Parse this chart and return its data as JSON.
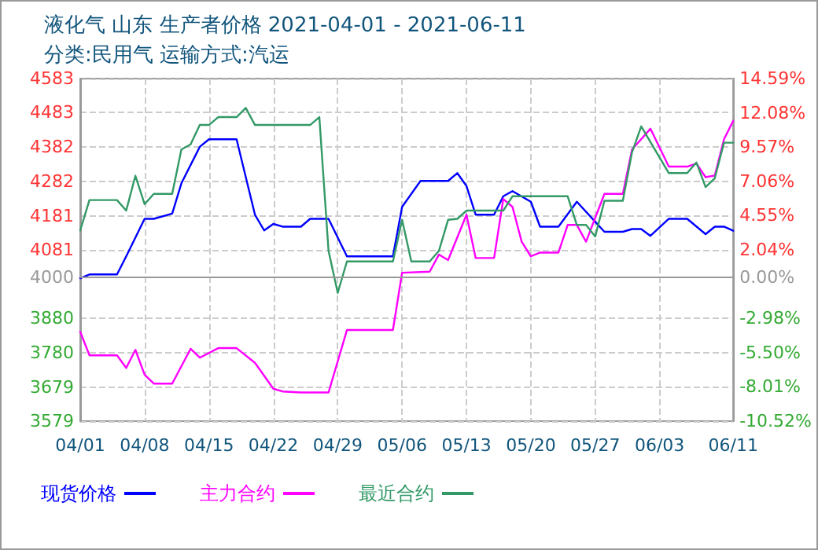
{
  "chart_data": {
    "type": "line",
    "title": "液化气 山东 生产者价格 2021-04-01 - 2021-06-11",
    "subtitle": "分类:民用气 运输方式:汽运",
    "xlim": [
      "2021-04-01",
      "2021-06-11"
    ],
    "xticks": [
      {
        "value": "2021-04-01",
        "label": "04/01"
      },
      {
        "value": "2021-04-08",
        "label": "04/08"
      },
      {
        "value": "2021-04-15",
        "label": "04/15"
      },
      {
        "value": "2021-04-22",
        "label": "04/22"
      },
      {
        "value": "2021-04-29",
        "label": "04/29"
      },
      {
        "value": "2021-05-06",
        "label": "05/06"
      },
      {
        "value": "2021-05-13",
        "label": "05/13"
      },
      {
        "value": "2021-05-20",
        "label": "05/20"
      },
      {
        "value": "2021-05-27",
        "label": "05/27"
      },
      {
        "value": "2021-06-03",
        "label": "06/03"
      },
      {
        "value": "2021-06-11",
        "label": "06/11"
      }
    ],
    "ylim": [
      3579,
      4583
    ],
    "yticks": [
      3579,
      3679,
      3780,
      3880,
      4000,
      4081,
      4181,
      4282,
      4382,
      4483,
      4583
    ],
    "y2lim": [
      -10.52,
      14.59
    ],
    "y2ticks": [
      {
        "value": -10.52,
        "label": "-10.52%"
      },
      {
        "value": -8.01,
        "label": "-8.01%"
      },
      {
        "value": -5.5,
        "label": "-5.50%"
      },
      {
        "value": -2.98,
        "label": "-2.98%"
      },
      {
        "value": 0,
        "label": "0.00%"
      },
      {
        "value": 2.04,
        "label": "2.04%"
      },
      {
        "value": 4.55,
        "label": "4.55%"
      },
      {
        "value": 7.06,
        "label": "7.06%"
      },
      {
        "value": 9.57,
        "label": "9.57%"
      },
      {
        "value": 12.08,
        "label": "12.08%"
      },
      {
        "value": 14.59,
        "label": "14.59%"
      }
    ],
    "ref_lines": [
      {
        "axis": "y",
        "value": 4000,
        "color": "#999999",
        "line_style": "solid"
      }
    ],
    "grid": true,
    "legend": "bottom left",
    "marker": "none",
    "line_style": "solid",
    "series": [
      {
        "name": "现货价格",
        "color": "#0000ff",
        "x": [
          "2021-04-01",
          "2021-04-02",
          "2021-04-05",
          "2021-04-06",
          "2021-04-08",
          "2021-04-09",
          "2021-04-11",
          "2021-04-12",
          "2021-04-14",
          "2021-04-15",
          "2021-04-18",
          "2021-04-20",
          "2021-04-21",
          "2021-04-22",
          "2021-04-23",
          "2021-04-25",
          "2021-04-26",
          "2021-04-28",
          "2021-04-30",
          "2021-05-05",
          "2021-05-06",
          "2021-05-08",
          "2021-05-11",
          "2021-05-12",
          "2021-05-13",
          "2021-05-14",
          "2021-05-16",
          "2021-05-17",
          "2021-05-18",
          "2021-05-20",
          "2021-05-21",
          "2021-05-23",
          "2021-05-25",
          "2021-05-28",
          "2021-05-30",
          "2021-05-31",
          "2021-06-01",
          "2021-06-02",
          "2021-06-04",
          "2021-06-06",
          "2021-06-08",
          "2021-06-09",
          "2021-06-10",
          "2021-06-11"
        ],
        "values": [
          3998,
          4009,
          4009,
          4062,
          4172,
          4172,
          4187,
          4276,
          4383,
          4405,
          4405,
          4184,
          4138,
          4157,
          4149,
          4149,
          4172,
          4172,
          4062,
          4062,
          4207,
          4283,
          4283,
          4306,
          4268,
          4184,
          4184,
          4238,
          4253,
          4222,
          4149,
          4149,
          4222,
          4134,
          4134,
          4142,
          4142,
          4122,
          4172,
          4172,
          4127,
          4149,
          4149,
          4137
        ]
      },
      {
        "name": "主力合约",
        "color": "#ff00ff",
        "x": [
          "2021-04-01",
          "2021-04-02",
          "2021-04-05",
          "2021-04-06",
          "2021-04-07",
          "2021-04-08",
          "2021-04-09",
          "2021-04-11",
          "2021-04-13",
          "2021-04-14",
          "2021-04-16",
          "2021-04-18",
          "2021-04-20",
          "2021-04-22",
          "2021-04-23",
          "2021-04-25",
          "2021-04-28",
          "2021-04-30",
          "2021-05-05",
          "2021-05-06",
          "2021-05-09",
          "2021-05-10",
          "2021-05-11",
          "2021-05-13",
          "2021-05-14",
          "2021-05-16",
          "2021-05-17",
          "2021-05-18",
          "2021-05-19",
          "2021-05-20",
          "2021-05-21",
          "2021-05-23",
          "2021-05-24",
          "2021-05-25",
          "2021-05-26",
          "2021-05-28",
          "2021-05-30",
          "2021-05-31",
          "2021-06-02",
          "2021-06-04",
          "2021-06-06",
          "2021-06-07",
          "2021-06-08",
          "2021-06-09",
          "2021-06-10",
          "2021-06-11"
        ],
        "values": [
          3841,
          3772,
          3772,
          3735,
          3788,
          3715,
          3689,
          3689,
          3791,
          3765,
          3793,
          3793,
          3750,
          3674,
          3666,
          3663,
          3663,
          3846,
          3846,
          4014,
          4017,
          4067,
          4051,
          4184,
          4057,
          4057,
          4230,
          4207,
          4105,
          4062,
          4073,
          4073,
          4154,
          4154,
          4105,
          4245,
          4245,
          4375,
          4436,
          4325,
          4325,
          4334,
          4294,
          4299,
          4405,
          4459
        ]
      },
      {
        "name": "最近合约",
        "color": "#339966",
        "x": [
          "2021-04-01",
          "2021-04-02",
          "2021-04-05",
          "2021-04-06",
          "2021-04-07",
          "2021-04-08",
          "2021-04-09",
          "2021-04-11",
          "2021-04-12",
          "2021-04-13",
          "2021-04-14",
          "2021-04-15",
          "2021-04-16",
          "2021-04-18",
          "2021-04-19",
          "2021-04-20",
          "2021-04-26",
          "2021-04-27",
          "2021-04-28",
          "2021-04-29",
          "2021-04-30",
          "2021-05-05",
          "2021-05-06",
          "2021-05-07",
          "2021-05-09",
          "2021-05-10",
          "2021-05-11",
          "2021-05-12",
          "2021-05-13",
          "2021-05-17",
          "2021-05-18",
          "2021-05-24",
          "2021-05-25",
          "2021-05-26",
          "2021-05-27",
          "2021-05-28",
          "2021-05-30",
          "2021-05-31",
          "2021-06-01",
          "2021-06-04",
          "2021-06-06",
          "2021-06-07",
          "2021-06-08",
          "2021-06-09",
          "2021-06-10",
          "2021-06-11"
        ],
        "values": [
          4138,
          4227,
          4227,
          4196,
          4298,
          4215,
          4245,
          4245,
          4375,
          4390,
          4447,
          4447,
          4470,
          4470,
          4497,
          4447,
          4447,
          4470,
          4078,
          3955,
          4047,
          4047,
          4169,
          4047,
          4047,
          4078,
          4169,
          4172,
          4196,
          4196,
          4238,
          4238,
          4154,
          4154,
          4120,
          4225,
          4225,
          4367,
          4443,
          4306,
          4306,
          4337,
          4265,
          4291,
          4395,
          4395
        ]
      }
    ]
  }
}
